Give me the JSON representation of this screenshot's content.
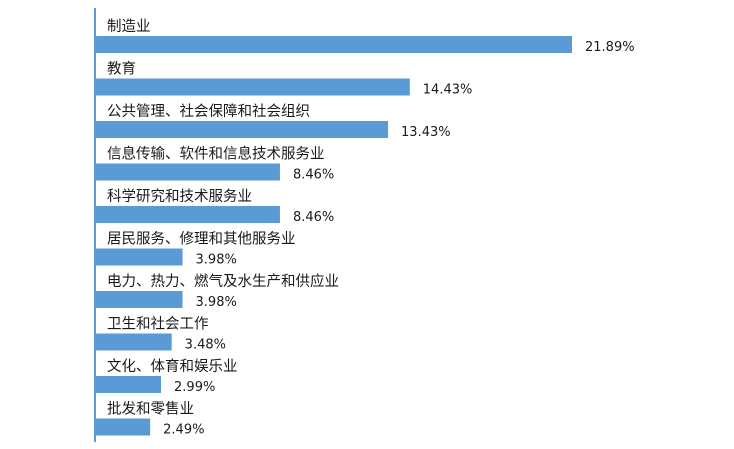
{
  "chart_data": {
    "type": "bar",
    "orientation": "horizontal",
    "categories": [
      "制造业",
      "教育",
      "公共管理、社会保障和社会组织",
      "信息传输、软件和信息技术服务业",
      "科学研究和技术服务业",
      "居民服务、修理和其他服务业",
      "电力、热力、燃气及水生产和供应业",
      "卫生和社会工作",
      "文化、体育和娱乐业",
      "批发和零售业"
    ],
    "values": [
      21.89,
      14.43,
      13.43,
      8.46,
      8.46,
      3.98,
      3.98,
      3.48,
      2.99,
      2.49
    ],
    "value_labels": [
      "21.89%",
      "14.43%",
      "13.43%",
      "8.46%",
      "8.46%",
      "3.98%",
      "3.98%",
      "3.48%",
      "2.99%",
      "2.49%"
    ],
    "title": "",
    "xlabel": "",
    "ylabel": "",
    "xlim": [
      0,
      21.89
    ],
    "grid": false,
    "legend": "none",
    "bar_color": "#5b9bd5",
    "axis_color": "#5b9bd5"
  }
}
